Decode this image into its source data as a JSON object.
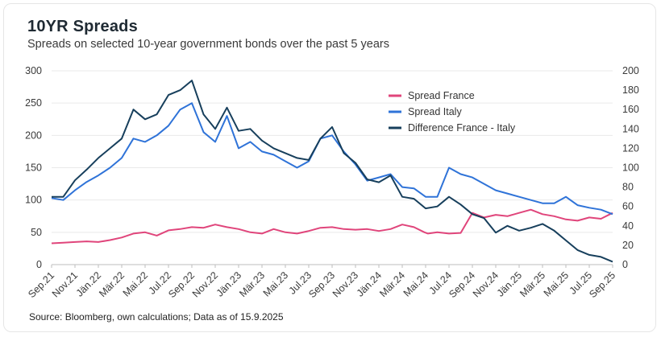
{
  "header": {
    "title": "10YR Spreads",
    "subtitle": "Spreads on selected 10-year government bonds over the past 5 years"
  },
  "footer": {
    "source": "Source: Bloomberg, own calculations; Data as of 15.9.2025"
  },
  "colors": {
    "france": "#e0457b",
    "italy": "#2f73d8",
    "difference": "#173f5c",
    "grid": "#e9e9e9",
    "axis": "#bdbdbd"
  },
  "chart_data": {
    "type": "line",
    "x_tick_labels": [
      "Sep.21",
      "Nov.21",
      "Jän.22",
      "Mär.22",
      "Mai.22",
      "Jul.22",
      "Sep.22",
      "Nov.22",
      "Jän.23",
      "Mär.23",
      "Mai.23",
      "Jul.23",
      "Sep.23",
      "Nov.23",
      "Jän.24",
      "Mär.24",
      "Mai.24",
      "Jul.24",
      "Sep.24",
      "Nov.24",
      "Jän.25",
      "Mär.25",
      "Mai.25",
      "Jul.25",
      "Sep.25"
    ],
    "y_left": {
      "ticks": [
        "0",
        "50",
        "100",
        "150",
        "200",
        "250",
        "300"
      ],
      "lim": [
        0,
        300
      ]
    },
    "y_right": {
      "ticks": [
        "0",
        "20",
        "40",
        "60",
        "80",
        "100",
        "120",
        "140",
        "160",
        "180",
        "200"
      ],
      "lim": [
        0,
        200
      ]
    },
    "grid": "horizontal",
    "legend_position": "top-right",
    "legend": [
      "Spread France",
      "Spread Italy",
      "Difference France - Italy"
    ],
    "x_index_range": [
      0,
      48
    ],
    "series": [
      {
        "name": "Spread France",
        "axis": "left",
        "x": [
          0,
          1,
          2,
          3,
          4,
          5,
          6,
          7,
          8,
          9,
          10,
          11,
          12,
          13,
          14,
          15,
          16,
          17,
          18,
          19,
          20,
          21,
          22,
          23,
          24,
          25,
          26,
          27,
          28,
          29,
          30,
          31,
          31.9,
          32.2,
          33,
          34,
          35,
          36,
          37,
          38,
          39,
          40,
          41,
          42,
          43,
          44,
          45,
          46,
          47,
          48
        ],
        "values": [
          33,
          34,
          35,
          36,
          35,
          38,
          42,
          48,
          50,
          45,
          53,
          55,
          58,
          57,
          62,
          58,
          55,
          50,
          48,
          55,
          50,
          48,
          52,
          57,
          58,
          55,
          54,
          55,
          52,
          55,
          62,
          58,
          50,
          48,
          50,
          48,
          49,
          80,
          73,
          77,
          75,
          80,
          85,
          78,
          75,
          70,
          68,
          73,
          71,
          80
        ]
      },
      {
        "name": "Spread Italy",
        "axis": "left",
        "x": [
          0,
          1,
          2,
          3,
          4,
          5,
          6,
          7,
          8,
          9,
          10,
          11,
          12,
          13,
          14,
          15,
          16,
          17,
          18,
          19,
          20,
          21,
          22,
          23,
          24,
          25,
          26,
          27,
          28,
          29,
          30,
          31,
          32,
          33,
          34,
          35,
          36,
          37,
          38,
          39,
          40,
          41,
          42,
          43,
          44,
          45,
          46,
          47,
          48
        ],
        "values": [
          103,
          100,
          115,
          128,
          138,
          150,
          165,
          195,
          190,
          200,
          215,
          240,
          250,
          205,
          190,
          230,
          180,
          190,
          175,
          170,
          160,
          150,
          160,
          195,
          200,
          175,
          155,
          130,
          135,
          140,
          120,
          118,
          105,
          105,
          150,
          140,
          135,
          125,
          115,
          110,
          105,
          100,
          95,
          95,
          105,
          92,
          88,
          85,
          78
        ]
      },
      {
        "name": "Difference France - Italy",
        "axis": "right",
        "x": [
          0,
          1,
          2,
          3,
          4,
          5,
          6,
          7,
          8,
          9,
          10,
          11,
          12,
          13,
          14,
          15,
          16,
          17,
          18,
          19,
          20,
          21,
          22,
          23,
          24,
          25,
          26,
          27,
          28,
          29,
          30,
          31,
          32,
          33,
          34,
          35,
          36,
          37,
          38,
          39,
          40,
          41,
          42,
          43,
          44,
          45,
          46,
          47,
          48
        ],
        "values": [
          70,
          70,
          87,
          98,
          110,
          120,
          130,
          160,
          150,
          155,
          175,
          180,
          190,
          155,
          140,
          162,
          138,
          140,
          128,
          120,
          115,
          110,
          108,
          130,
          142,
          115,
          105,
          88,
          85,
          92,
          70,
          68,
          58,
          60,
          70,
          62,
          52,
          48,
          33,
          40,
          35,
          38,
          42,
          35,
          25,
          15,
          10,
          8,
          3
        ]
      }
    ]
  }
}
